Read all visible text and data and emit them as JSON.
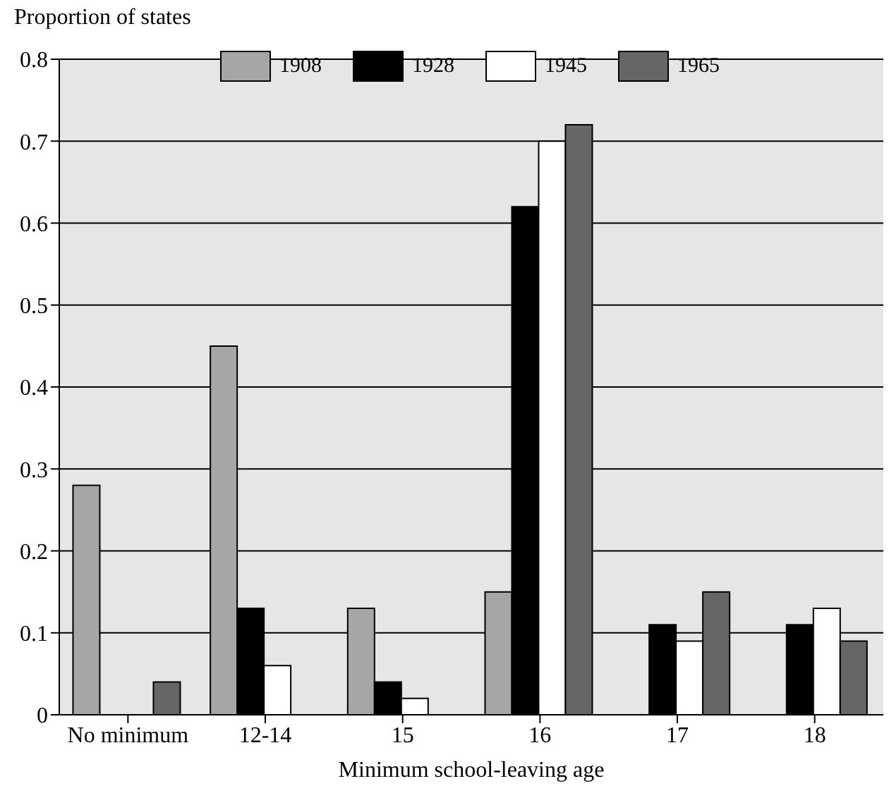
{
  "chart_data": {
    "type": "bar",
    "xlabel": "Minimum school-leaving age",
    "ylabel": "Proportion of states",
    "categories": [
      "No minimum",
      "12-14",
      "15",
      "16",
      "17",
      "18"
    ],
    "series": [
      {
        "name": "1908",
        "color": "#a6a6a6",
        "values": [
          0.28,
          0.45,
          0.13,
          0.15,
          0,
          0
        ]
      },
      {
        "name": "1928",
        "color": "#000000",
        "values": [
          0,
          0.13,
          0.04,
          0.62,
          0.11,
          0.11
        ]
      },
      {
        "name": "1945",
        "color": "#ffffff",
        "values": [
          0,
          0.06,
          0.02,
          0.7,
          0.09,
          0.13
        ]
      },
      {
        "name": "1965",
        "color": "#666666",
        "values": [
          0.04,
          0,
          0,
          0.72,
          0.15,
          0.09
        ]
      }
    ],
    "ylim": [
      0,
      0.8
    ],
    "yticks": [
      0,
      0.1,
      0.2,
      0.3,
      0.4,
      0.5,
      0.6,
      0.7,
      0.8
    ],
    "grid": "y",
    "legend": "top"
  }
}
